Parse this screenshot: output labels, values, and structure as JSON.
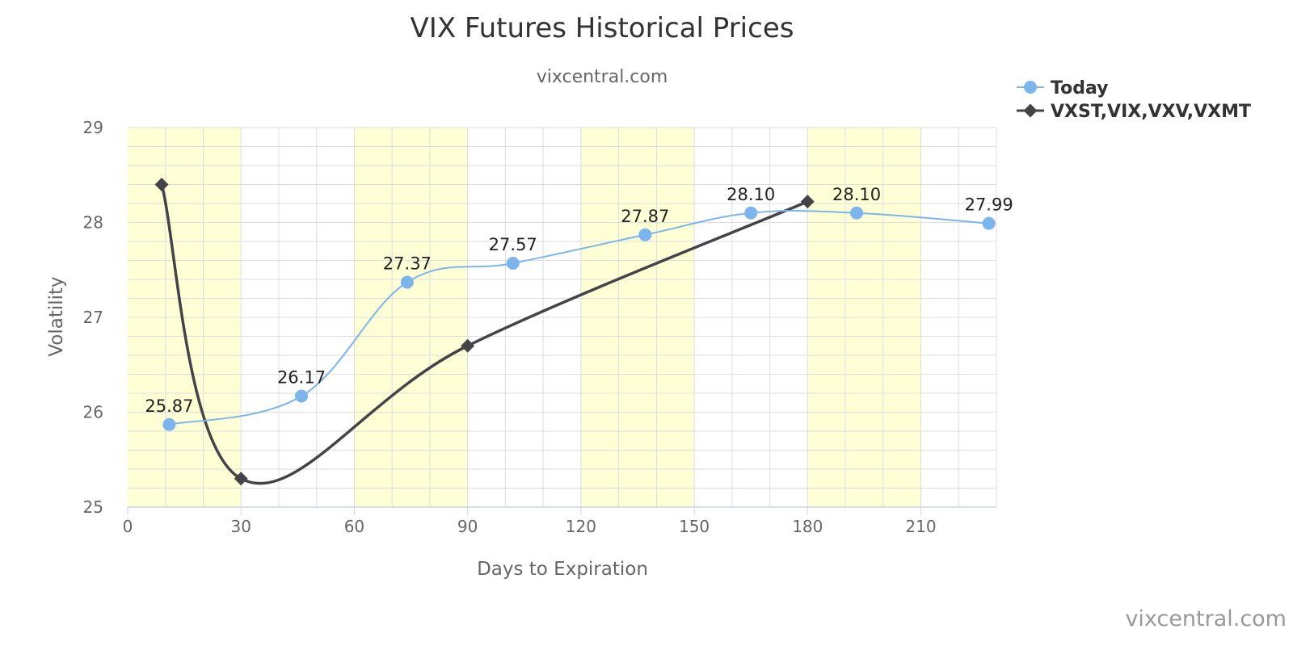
{
  "chart_data": {
    "type": "line",
    "title": "VIX Futures Historical Prices",
    "subtitle": "vixcentral.com",
    "credit": "vixcentral.com",
    "xlabel": "Days to Expiration",
    "ylabel": "Volatility",
    "xlim": [
      0,
      230
    ],
    "ylim": [
      25,
      29
    ],
    "x_ticks": [
      0,
      30,
      60,
      90,
      120,
      150,
      180,
      210
    ],
    "x_tick_labels": [
      "0",
      "30",
      "60",
      "90",
      "120",
      "150",
      "180",
      "210"
    ],
    "y_ticks": [
      25,
      26,
      27,
      28,
      29
    ],
    "y_tick_labels": [
      "25",
      "26",
      "27",
      "28",
      "29"
    ],
    "grid": true,
    "shaded_bands": [
      [
        0,
        30
      ],
      [
        60,
        90
      ],
      [
        120,
        150
      ],
      [
        180,
        210
      ]
    ],
    "legend": "top-right",
    "series": [
      {
        "name": "Today",
        "color": "#7cb5ec",
        "marker": "circle",
        "points": [
          {
            "x": 11,
            "y": 25.87,
            "label": "25.87"
          },
          {
            "x": 46,
            "y": 26.17,
            "label": "26.17"
          },
          {
            "x": 74,
            "y": 27.37,
            "label": "27.37"
          },
          {
            "x": 102,
            "y": 27.57,
            "label": "27.57"
          },
          {
            "x": 137,
            "y": 27.87,
            "label": "27.87"
          },
          {
            "x": 165,
            "y": 28.1,
            "label": "28.10"
          },
          {
            "x": 193,
            "y": 28.1,
            "label": "28.10"
          },
          {
            "x": 228,
            "y": 27.99,
            "label": "27.99"
          }
        ]
      },
      {
        "name": "VXST,VIX,VXV,VXMT",
        "color": "#434348",
        "marker": "diamond",
        "points": [
          {
            "x": 9,
            "y": 28.4
          },
          {
            "x": 30,
            "y": 25.3
          },
          {
            "x": 90,
            "y": 26.7
          },
          {
            "x": 180,
            "y": 28.22
          }
        ]
      }
    ],
    "colors": {
      "band": "#ffffd6",
      "grid": "#dddddd",
      "axis": "#ccd6eb"
    }
  }
}
